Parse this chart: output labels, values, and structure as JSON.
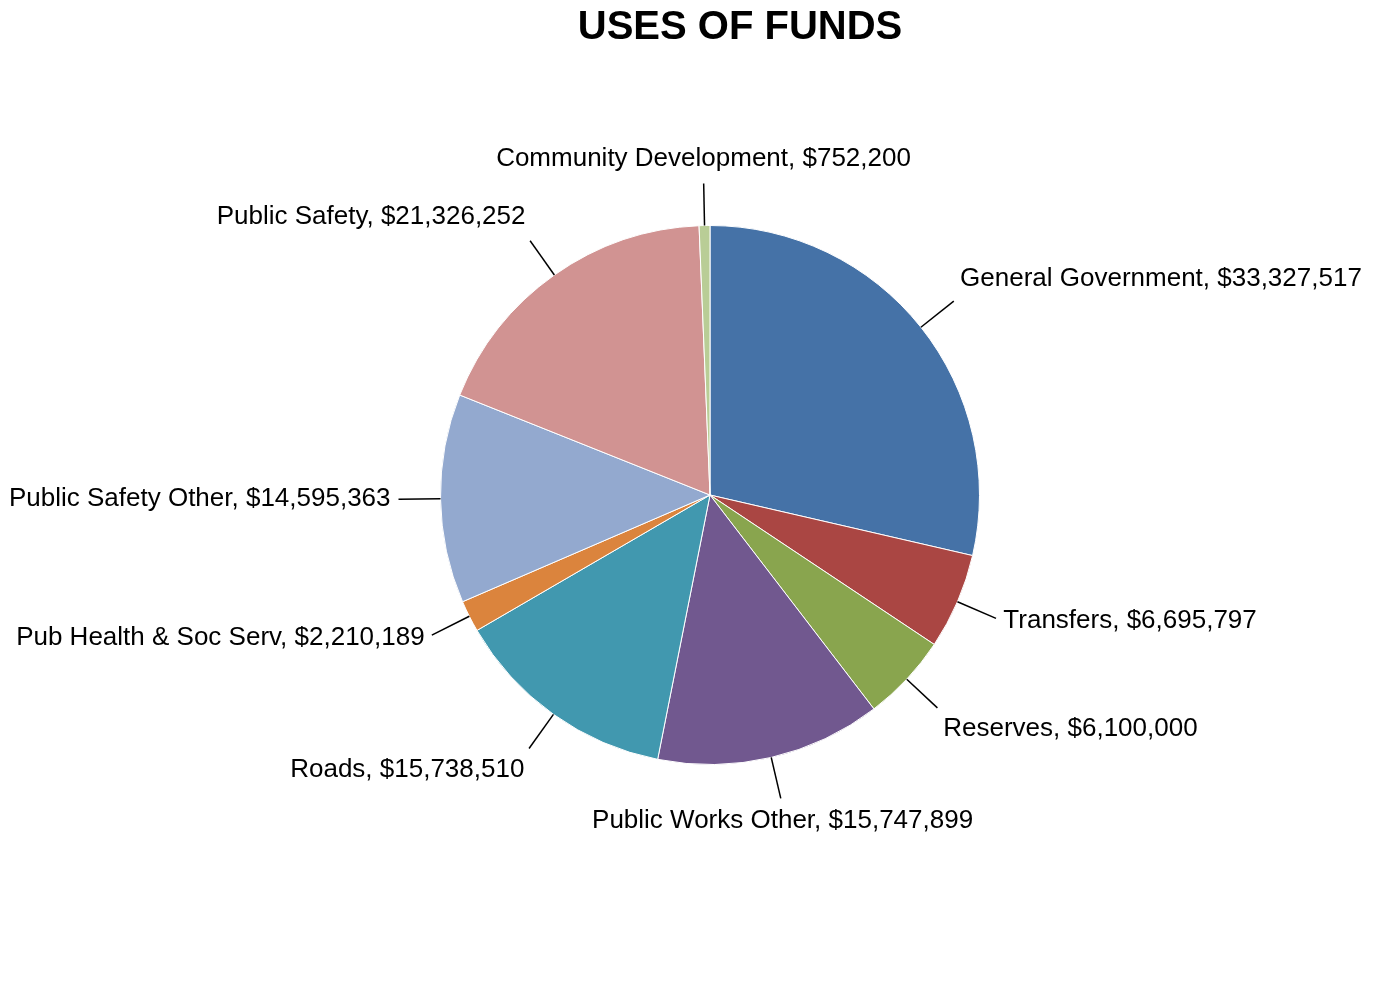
{
  "chart_data": {
    "type": "pie",
    "title": "USES OF FUNDS",
    "categories": [
      "General Government",
      "Transfers",
      "Reserves",
      "Public Works Other",
      "Roads",
      "Pub Health & Soc Serv",
      "Public Safety Other",
      "Public Safety",
      "Community Development"
    ],
    "values": [
      33327517,
      6695797,
      6100000,
      15747899,
      15738510,
      2210189,
      14595363,
      21326252,
      752200
    ],
    "value_labels": [
      "$33,327,517",
      "$6,695,797",
      "$6,100,000",
      "$15,747,899",
      "$15,738,510",
      "$2,210,189",
      "$14,595,363",
      "$21,326,252",
      "$752,200"
    ],
    "colors": [
      "#4572a7",
      "#aa4643",
      "#89a54e",
      "#71588f",
      "#4198af",
      "#db843d",
      "#93a9cf",
      "#d19392",
      "#b9cd96"
    ],
    "legend": false
  }
}
